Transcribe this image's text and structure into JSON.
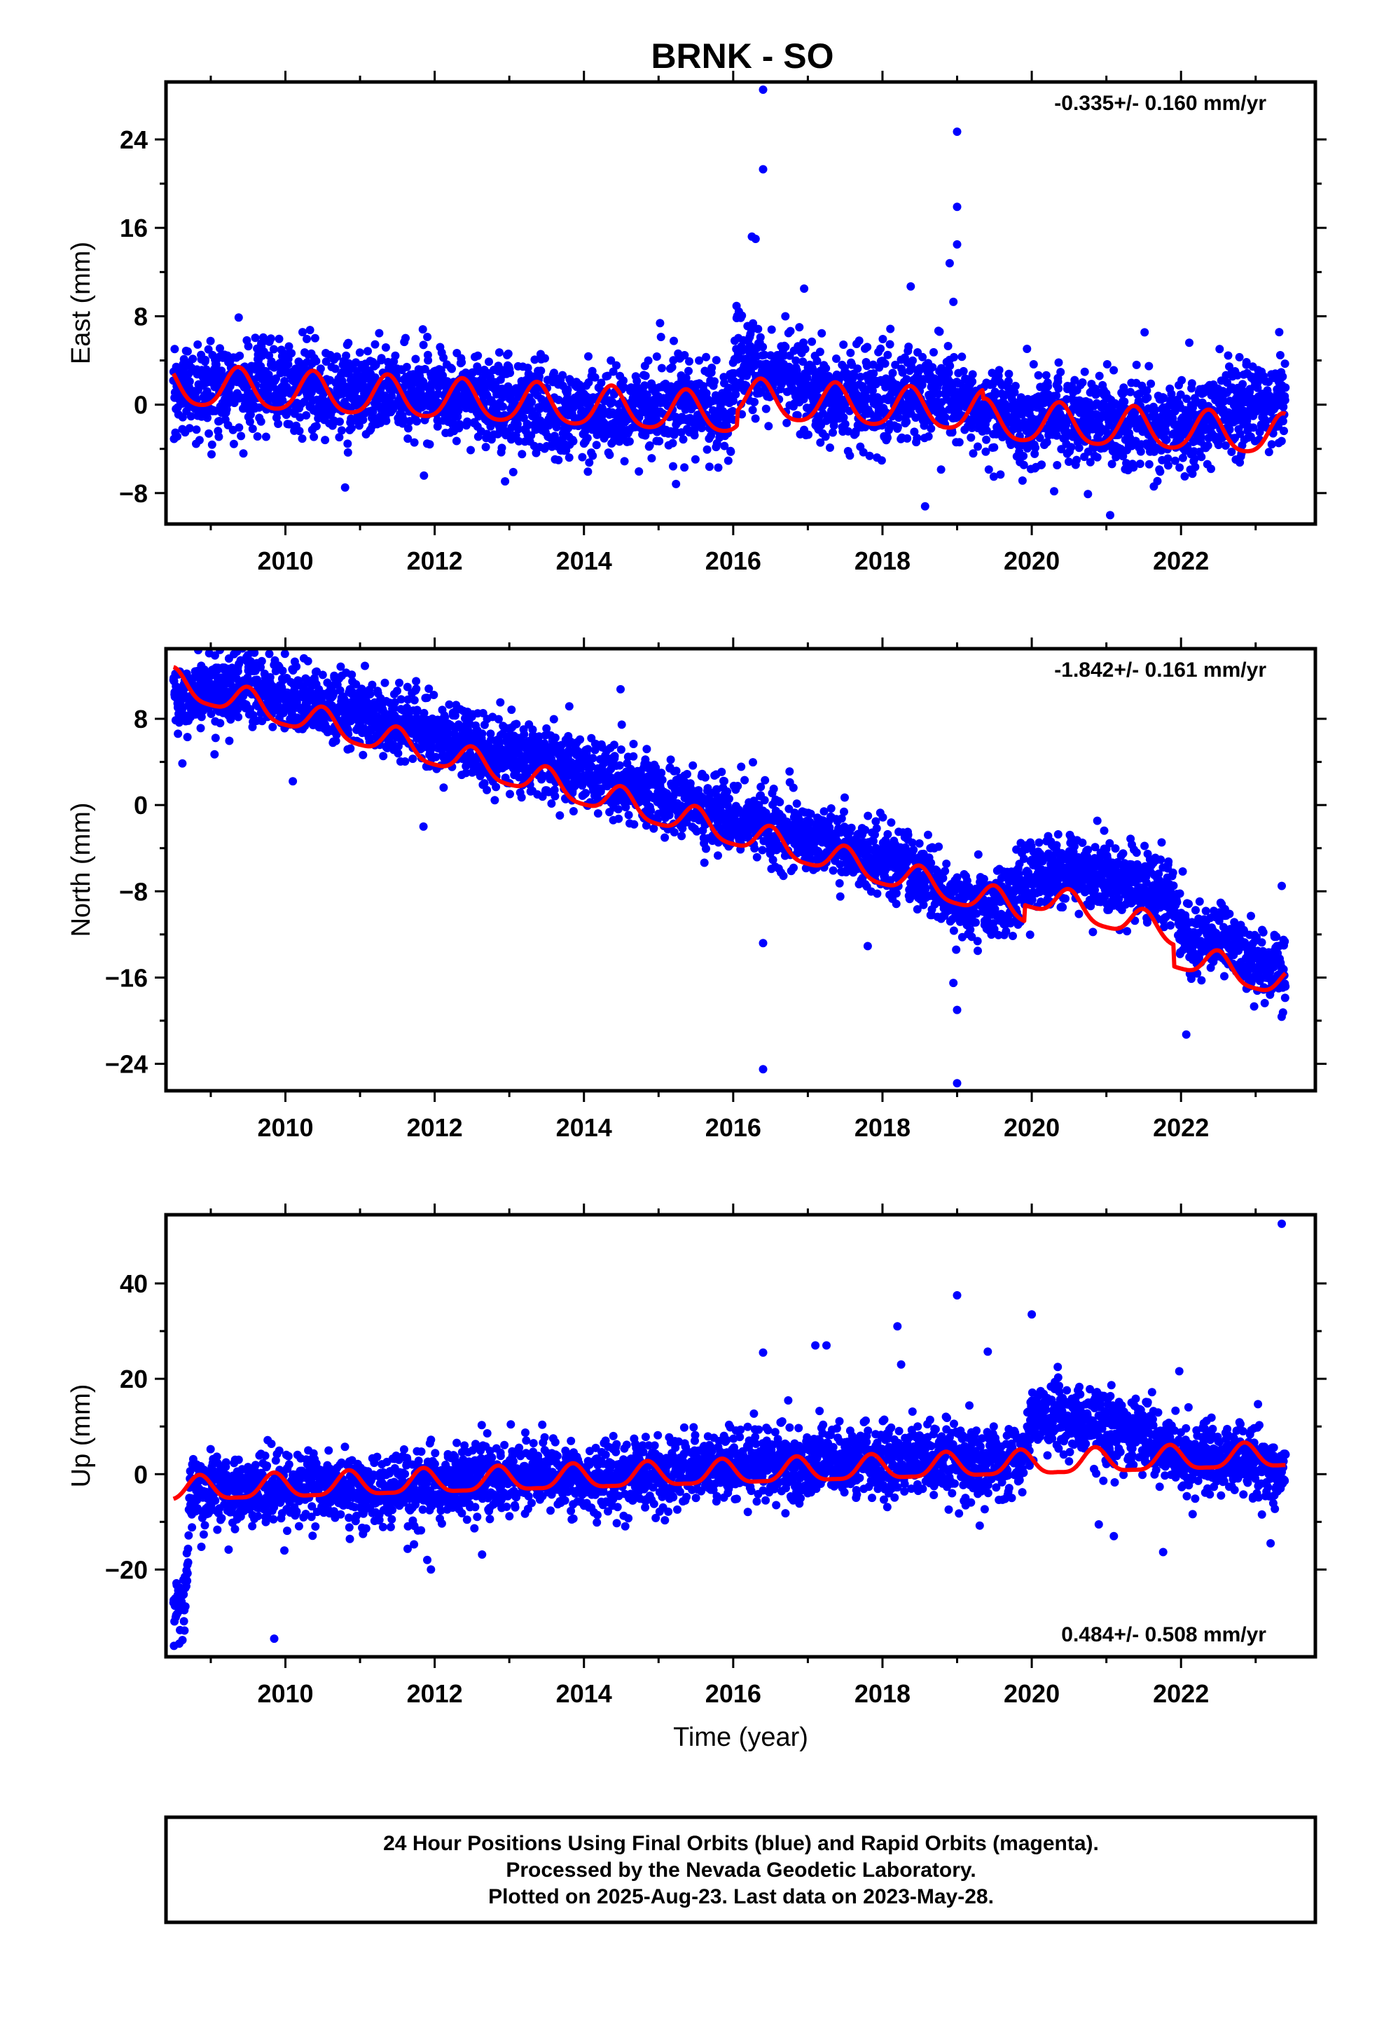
{
  "title": "BRNK - SO",
  "colors": {
    "points": "#0000ff",
    "fit": "#ff0000",
    "frame": "#000000"
  },
  "caption": {
    "line1": "24 Hour Positions Using Final Orbits (blue) and Rapid Orbits (magenta).",
    "line2": "Processed by the Nevada Geodetic Laboratory.",
    "line3": "Plotted on 2025-Aug-23. Last data on 2023-May-28."
  },
  "chart_data": [
    {
      "type": "scatter",
      "ylabel": "East (mm)",
      "xlabel": "",
      "xlim": [
        2008.4,
        2023.8
      ],
      "ylim": [
        -10.8,
        29.2
      ],
      "x_ticks": [
        2010,
        2012,
        2014,
        2016,
        2018,
        2020,
        2022
      ],
      "y_ticks": [
        -8,
        0,
        8,
        16,
        24
      ],
      "rate_label": "-0.335+/- 0.160 mm/yr",
      "rate_position": "top-right",
      "grid": false,
      "series": [
        {
          "role": "daily positions",
          "x_start": 2008.5,
          "x_end": 2023.4,
          "center": [
            [
              2008.5,
              0.8
            ],
            [
              2009.5,
              1.8
            ],
            [
              2010.5,
              1.3
            ],
            [
              2011.5,
              1.4
            ],
            [
              2012.5,
              0.3
            ],
            [
              2013.5,
              -0.8
            ],
            [
              2014.5,
              -0.5
            ],
            [
              2015.5,
              -0.2
            ],
            [
              2015.95,
              -1.0
            ],
            [
              2016.05,
              4.8
            ],
            [
              2016.5,
              2.8
            ],
            [
              2017.0,
              1.6
            ],
            [
              2017.5,
              0.8
            ],
            [
              2018.0,
              0.3
            ],
            [
              2018.5,
              0.8
            ],
            [
              2019.0,
              0.8
            ],
            [
              2019.5,
              -0.8
            ],
            [
              2020.0,
              -1.6
            ],
            [
              2020.5,
              -1.4
            ],
            [
              2021.0,
              -2.2
            ],
            [
              2021.5,
              -1.6
            ],
            [
              2022.0,
              -2.2
            ],
            [
              2022.5,
              -0.8
            ],
            [
              2023.4,
              0.5
            ]
          ],
          "spread": 2.0,
          "outliers": [
            [
              2016.4,
              28.5
            ],
            [
              2016.4,
              21.3
            ],
            [
              2016.25,
              15.2
            ],
            [
              2016.3,
              15.0
            ],
            [
              2016.95,
              10.5
            ],
            [
              2018.9,
              12.8
            ],
            [
              2019.0,
              24.7
            ],
            [
              2019.0,
              17.9
            ],
            [
              2019.0,
              14.5
            ],
            [
              2018.95,
              9.3
            ],
            [
              2021.05,
              -10.0
            ],
            [
              2010.8,
              -7.5
            ],
            [
              2015.8,
              -5.7
            ]
          ]
        },
        {
          "role": "model fit",
          "offset": 1.6,
          "slope": -0.335,
          "x0": 2008.5,
          "annual_amplitude": 1.8,
          "annual_peak": 2009.37,
          "semiannual_amplitude": 0.3,
          "steps": [
            [
              2016.05,
              1.3
            ],
            [
              2019.35,
              -0.8
            ]
          ],
          "x_start": 2008.5,
          "x_end": 2023.4
        }
      ]
    },
    {
      "type": "scatter",
      "ylabel": "North (mm)",
      "xlabel": "",
      "xlim": [
        2008.4,
        2023.8
      ],
      "ylim": [
        -26.5,
        14.5
      ],
      "x_ticks": [
        2010,
        2012,
        2014,
        2016,
        2018,
        2020,
        2022
      ],
      "y_ticks": [
        -24,
        -16,
        -8,
        0,
        8
      ],
      "rate_label": "-1.842+/- 0.161 mm/yr",
      "rate_position": "top-right",
      "grid": false,
      "series": [
        {
          "role": "daily positions",
          "x_start": 2008.5,
          "x_end": 2023.4,
          "center": [
            [
              2008.5,
              10.0
            ],
            [
              2009.5,
              11.0
            ],
            [
              2010.5,
              9.0
            ],
            [
              2011.5,
              7.5
            ],
            [
              2012.5,
              5.5
            ],
            [
              2013.5,
              4.0
            ],
            [
              2014.5,
              2.0
            ],
            [
              2015.5,
              -0.2
            ],
            [
              2016.5,
              -2.0
            ],
            [
              2017.5,
              -4.0
            ],
            [
              2018.5,
              -6.0
            ],
            [
              2019.0,
              -9.0
            ],
            [
              2019.5,
              -9.5
            ],
            [
              2020.0,
              -6.5
            ],
            [
              2020.5,
              -6.0
            ],
            [
              2021.0,
              -6.5
            ],
            [
              2021.5,
              -7.5
            ],
            [
              2021.9,
              -8.5
            ],
            [
              2022.1,
              -12.5
            ],
            [
              2022.5,
              -12.5
            ],
            [
              2023.0,
              -15.0
            ],
            [
              2023.4,
              -15.0
            ]
          ],
          "spread": 1.6,
          "outliers": [
            [
              2016.4,
              -12.8
            ],
            [
              2016.4,
              -24.5
            ],
            [
              2018.95,
              -16.5
            ],
            [
              2019.0,
              -19.0
            ],
            [
              2019.0,
              -25.8
            ],
            [
              2023.35,
              -7.5
            ],
            [
              2011.85,
              -2.0
            ],
            [
              2010.1,
              2.2
            ],
            [
              2009.05,
              4.7
            ]
          ]
        },
        {
          "role": "model fit",
          "offset": 11.2,
          "slope": -1.842,
          "x0": 2008.5,
          "annual_amplitude": 1.3,
          "annual_peak": 2009.5,
          "semiannual_amplitude": 0.3,
          "steps": [
            [
              2019.9,
              1.5
            ],
            [
              2021.9,
              -2.0
            ]
          ],
          "x_start": 2008.5,
          "x_end": 2023.4
        }
      ]
    },
    {
      "type": "scatter",
      "ylabel": "Up (mm)",
      "xlabel": "Time (year)",
      "xlim": [
        2008.4,
        2023.8
      ],
      "ylim": [
        -38.3,
        54.4
      ],
      "x_ticks": [
        2010,
        2012,
        2014,
        2016,
        2018,
        2020,
        2022
      ],
      "y_ticks": [
        -20,
        0,
        20,
        40
      ],
      "rate_label": "0.484+/- 0.508 mm/yr",
      "rate_position": "bottom-right",
      "grid": false,
      "series": [
        {
          "role": "daily positions",
          "x_start": 2008.5,
          "x_end": 2023.4,
          "center": [
            [
              2008.5,
              -29.0
            ],
            [
              2008.66,
              -27.0
            ],
            [
              2008.72,
              -4.0
            ],
            [
              2009.5,
              -3.0
            ],
            [
              2010.5,
              -3.0
            ],
            [
              2011.5,
              -3.5
            ],
            [
              2012.5,
              -1.0
            ],
            [
              2013.5,
              0.0
            ],
            [
              2014.5,
              -1.0
            ],
            [
              2015.5,
              1.5
            ],
            [
              2016.5,
              2.0
            ],
            [
              2017.5,
              3.0
            ],
            [
              2018.5,
              3.0
            ],
            [
              2019.5,
              2.5
            ],
            [
              2019.85,
              3.0
            ],
            [
              2020.0,
              12.0
            ],
            [
              2020.5,
              12.0
            ],
            [
              2021.0,
              10.0
            ],
            [
              2021.5,
              8.0
            ],
            [
              2022.0,
              4.0
            ],
            [
              2022.5,
              3.5
            ],
            [
              2023.0,
              2.5
            ],
            [
              2023.4,
              1.0
            ]
          ],
          "spread": 3.6,
          "outliers": [
            [
              2023.35,
              52.5
            ],
            [
              2019.0,
              37.5
            ],
            [
              2020.0,
              33.5
            ],
            [
              2018.2,
              31.0
            ],
            [
              2017.1,
              27.0
            ],
            [
              2017.25,
              27.0
            ],
            [
              2016.4,
              25.5
            ],
            [
              2018.25,
              23.0
            ],
            [
              2009.85,
              -34.5
            ],
            [
              2011.95,
              -20.0
            ],
            [
              2011.9,
              -18.0
            ],
            [
              2021.1,
              -13.0
            ],
            [
              2023.2,
              -14.5
            ]
          ]
        },
        {
          "role": "model fit",
          "offset": -3.5,
          "slope": 0.484,
          "x0": 2008.5,
          "annual_amplitude": 2.5,
          "annual_peak": 2008.85,
          "semiannual_amplitude": 0.7,
          "steps": [
            [
              2009.75,
              0
            ],
            [
              2019.9,
              0
            ]
          ],
          "x_start": 2008.5,
          "x_end": 2023.4
        }
      ]
    }
  ]
}
